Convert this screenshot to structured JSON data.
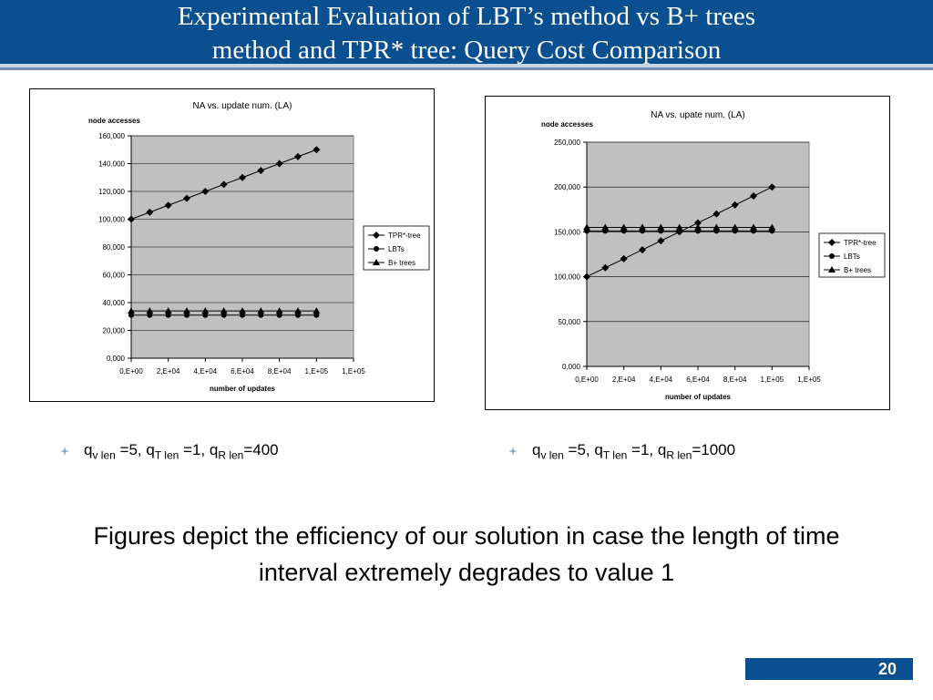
{
  "slide": {
    "title_line1": "Experimental Evaluation of LBT’s method vs B+ trees",
    "title_line2": "method and TPR* tree: Query Cost Comparison",
    "caption_line1": "Figures depict the efficiency of our solution in case the length of time",
    "caption_line2": "interval extremely degrades to value 1",
    "page_number": "20",
    "colors": {
      "header": "#0a4f8f",
      "plot_area": "#c0c0c0",
      "gridline": "#000000"
    }
  },
  "bullets": [
    {
      "q": "q",
      "v_sub": "v len",
      "t1": " =5, q",
      "t_sub": "T len",
      "t2": " =1, q",
      "r_sub": "R len",
      "t3": "=400"
    },
    {
      "q": "q",
      "v_sub": "v len",
      "t1": " =5, q",
      "t_sub": "T len",
      "t2": " =1, q",
      "r_sub": "R len",
      "t3": "=1000"
    }
  ],
  "chart_data": [
    {
      "type": "line",
      "title": "NA vs. update num. (LA)",
      "ylabel": "node accesses",
      "xlabel": "number of updates",
      "x": [
        0,
        10000,
        20000,
        30000,
        40000,
        50000,
        60000,
        70000,
        80000,
        90000,
        100000
      ],
      "xlim": [
        0,
        120000
      ],
      "xticks": [
        0,
        20000,
        40000,
        60000,
        80000,
        100000,
        120000
      ],
      "xtick_labels": [
        "0,E+00",
        "2,E+04",
        "4,E+04",
        "6,E+04",
        "8,E+04",
        "1,E+05",
        "1,E+05"
      ],
      "ylim": [
        0,
        160000
      ],
      "yticks": [
        0,
        20000,
        40000,
        60000,
        80000,
        100000,
        120000,
        140000,
        160000
      ],
      "ytick_labels": [
        "0,000",
        "20,000",
        "40,000",
        "60,000",
        "80,000",
        "100,000",
        "120,000",
        "140,000",
        "160,000"
      ],
      "grid": true,
      "legend": "right",
      "series": [
        {
          "name": "TPR*-tree",
          "marker": "diamond",
          "values": [
            100000,
            105000,
            110000,
            115000,
            120000,
            125000,
            130000,
            135000,
            140000,
            145000,
            150000
          ]
        },
        {
          "name": "LBTs",
          "marker": "circle",
          "values": [
            31000,
            31000,
            31000,
            31000,
            31000,
            31000,
            31000,
            31000,
            31000,
            31000,
            31000
          ]
        },
        {
          "name": "B+ trees",
          "marker": "triangle",
          "values": [
            34000,
            34000,
            34000,
            34000,
            34000,
            34000,
            34000,
            34000,
            34000,
            34000,
            34000
          ]
        }
      ]
    },
    {
      "type": "line",
      "title": "NA vs. upate num. (LA)",
      "ylabel": "node accesses",
      "xlabel": "number of updates",
      "x": [
        0,
        10000,
        20000,
        30000,
        40000,
        50000,
        60000,
        70000,
        80000,
        90000,
        100000
      ],
      "xlim": [
        0,
        120000
      ],
      "xticks": [
        0,
        20000,
        40000,
        60000,
        80000,
        100000,
        120000
      ],
      "xtick_labels": [
        "0,E+00",
        "2,E+04",
        "4,E+04",
        "6,E+04",
        "8,E+04",
        "1,E+05",
        "1,E+05"
      ],
      "ylim": [
        0,
        250000
      ],
      "yticks": [
        0,
        50000,
        100000,
        150000,
        200000,
        250000
      ],
      "ytick_labels": [
        "0,000",
        "50,000",
        "100,000",
        "150,000",
        "200,000",
        "250,000"
      ],
      "grid": true,
      "legend": "right",
      "series": [
        {
          "name": "TPR*-tree",
          "marker": "diamond",
          "values": [
            100000,
            110000,
            120000,
            130000,
            140000,
            150000,
            160000,
            170000,
            180000,
            190000,
            200000
          ]
        },
        {
          "name": "LBTs",
          "marker": "circle",
          "values": [
            151000,
            151000,
            151000,
            151000,
            151000,
            151000,
            151000,
            151000,
            151000,
            151000,
            151000
          ]
        },
        {
          "name": "B+ trees",
          "marker": "triangle",
          "values": [
            155000,
            155000,
            155000,
            155000,
            155000,
            155000,
            155000,
            155000,
            155000,
            155000,
            155000
          ]
        }
      ]
    }
  ]
}
